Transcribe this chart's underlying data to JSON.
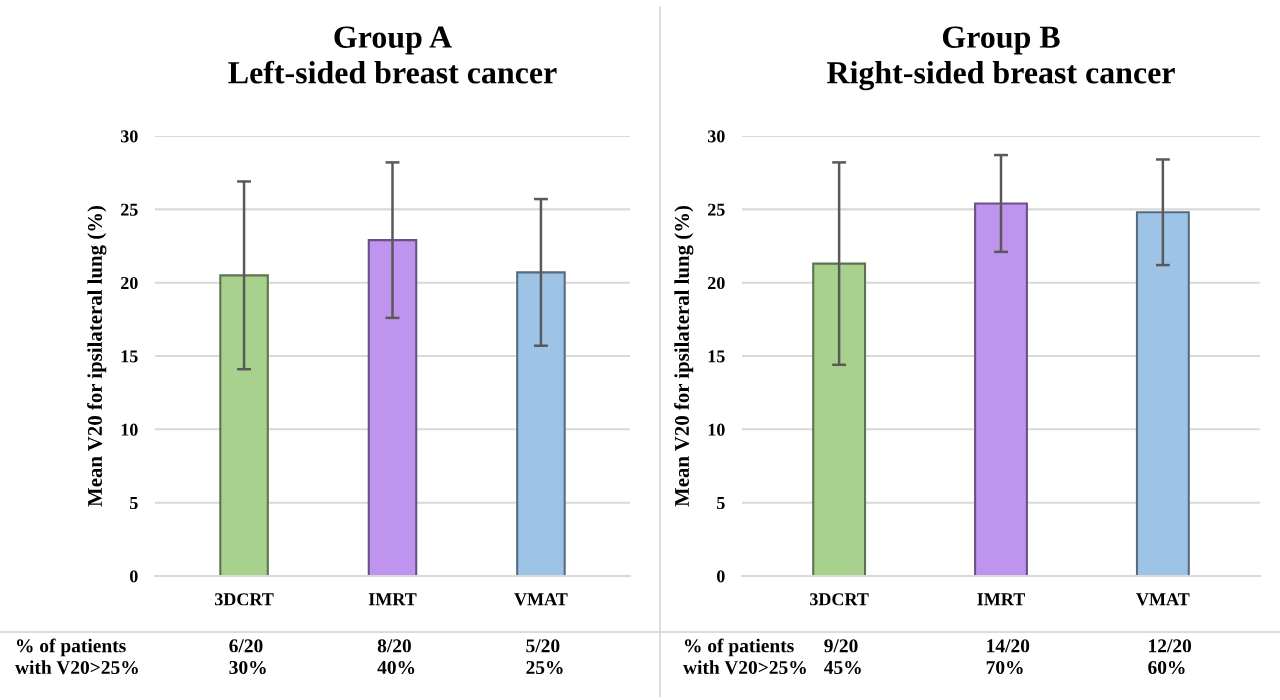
{
  "chart_data": [
    {
      "type": "bar",
      "title": "Group A\nLeft-sided breast cancer",
      "ylabel": "Mean V20 for ipsilateral lung (%)",
      "categories": [
        "3DCRT",
        "IMRT",
        "VMAT"
      ],
      "values": [
        20.5,
        22.9,
        20.7
      ],
      "errors": [
        6.4,
        5.3,
        5.0
      ],
      "colors": [
        "#a9d18e",
        "#bf94ee",
        "#9dc3e6"
      ],
      "ylim": [
        0,
        30
      ],
      "yticks": [
        0,
        5,
        10,
        15,
        20,
        25,
        30
      ],
      "grid": "y",
      "annotations": [
        "% of patients\nwith V20>25%",
        "6/20\n30%",
        "8/20\n40%",
        "5/20\n25%"
      ]
    },
    {
      "type": "bar",
      "title": "Group B\nRight-sided breast cancer",
      "ylabel": "Mean V20 for ipsilateral lung (%)",
      "categories": [
        "3DCRT",
        "IMRT",
        "VMAT"
      ],
      "values": [
        21.3,
        25.4,
        24.8
      ],
      "errors": [
        6.9,
        3.3,
        3.6
      ],
      "colors": [
        "#a9d18e",
        "#bf94ee",
        "#9dc3e6"
      ],
      "ylim": [
        0,
        30
      ],
      "yticks": [
        0,
        5,
        10,
        15,
        20,
        25,
        30
      ],
      "grid": "y",
      "annotations": [
        "% of patients\nwith V20>25%",
        "9/20\n45%",
        "14/20\n70%",
        "12/20\n60%"
      ]
    }
  ]
}
